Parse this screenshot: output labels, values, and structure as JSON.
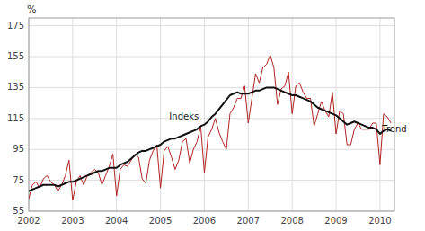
{
  "chart_data": {
    "type": "line",
    "ylabel": "%",
    "ylim": [
      55,
      180
    ],
    "yticks": [
      55,
      75,
      95,
      115,
      135,
      155,
      175
    ],
    "xlim": [
      2002.0,
      2010.33
    ],
    "xticks": [
      2002,
      2003,
      2004,
      2005,
      2006,
      2007,
      2008,
      2009,
      2010
    ],
    "grid": true,
    "x": [
      2002.0,
      2002.0833333333333,
      2002.1666666666667,
      2002.25,
      2002.3333333333333,
      2002.4166666666667,
      2002.5,
      2002.5833333333333,
      2002.6666666666667,
      2002.75,
      2002.8333333333333,
      2002.9166666666667,
      2003.0,
      2003.0833333333333,
      2003.1666666666667,
      2003.25,
      2003.3333333333333,
      2003.4166666666667,
      2003.5,
      2003.5833333333333,
      2003.6666666666667,
      2003.75,
      2003.8333333333333,
      2003.9166666666667,
      2004.0,
      2004.0833333333333,
      2004.1666666666667,
      2004.25,
      2004.3333333333333,
      2004.4166666666667,
      2004.5,
      2004.5833333333333,
      2004.6666666666667,
      2004.75,
      2004.8333333333333,
      2004.9166666666667,
      2005.0,
      2005.0833333333333,
      2005.1666666666667,
      2005.25,
      2005.3333333333333,
      2005.4166666666667,
      2005.5,
      2005.5833333333333,
      2005.6666666666667,
      2005.75,
      2005.8333333333333,
      2005.9166666666667,
      2006.0,
      2006.0833333333333,
      2006.1666666666667,
      2006.25,
      2006.3333333333333,
      2006.4166666666667,
      2006.5,
      2006.5833333333333,
      2006.6666666666667,
      2006.75,
      2006.8333333333333,
      2006.9166666666667,
      2007.0,
      2007.0833333333333,
      2007.1666666666667,
      2007.25,
      2007.3333333333333,
      2007.4166666666667,
      2007.5,
      2007.5833333333333,
      2007.6666666666667,
      2007.75,
      2007.8333333333333,
      2007.9166666666667,
      2008.0,
      2008.0833333333333,
      2008.1666666666667,
      2008.25,
      2008.3333333333333,
      2008.4166666666667,
      2008.5,
      2008.5833333333333,
      2008.6666666666667,
      2008.75,
      2008.8333333333333,
      2008.9166666666667,
      2009.0,
      2009.0833333333333,
      2009.1666666666667,
      2009.25,
      2009.3333333333333,
      2009.4166666666667,
      2009.5,
      2009.5833333333333,
      2009.6666666666667,
      2009.75,
      2009.8333333333333,
      2009.9166666666667,
      2010.0,
      2010.0833333333333,
      2010.1666666666667,
      2010.25
    ],
    "series": [
      {
        "color": "#b22222",
        "values": [
          63,
          72,
          74,
          70,
          76,
          78,
          74,
          72,
          68,
          72,
          78,
          88,
          62,
          74,
          78,
          72,
          78,
          80,
          82,
          80,
          72,
          78,
          84,
          92,
          65,
          82,
          85,
          84,
          88,
          92,
          90,
          76,
          73,
          88,
          94,
          98,
          70,
          94,
          97,
          90,
          82,
          88,
          100,
          102,
          86,
          95,
          100,
          110,
          80,
          103,
          108,
          115,
          106,
          100,
          95,
          118,
          122,
          128,
          128,
          136,
          112,
          128,
          144,
          138,
          148,
          150,
          156,
          148,
          124,
          134,
          136,
          145,
          118,
          136,
          138,
          132,
          128,
          128,
          110,
          118,
          126,
          120,
          116,
          132,
          105,
          120,
          118,
          98,
          98,
          108,
          112,
          108,
          108,
          108,
          112,
          112,
          85,
          118,
          116,
          112
        ]
      },
      {
        "color": "#111111",
        "values": [
          68,
          69,
          70,
          71,
          72,
          72,
          72,
          72,
          71,
          72,
          73,
          74,
          74,
          75,
          76,
          77,
          78,
          79,
          80,
          81,
          81,
          82,
          83,
          83,
          83,
          85,
          86,
          87,
          89,
          91,
          93,
          94,
          94,
          95,
          96,
          97,
          98,
          100,
          101,
          102,
          102,
          103,
          104,
          105,
          106,
          107,
          108,
          110,
          111,
          113,
          116,
          118,
          121,
          124,
          127,
          130,
          131,
          132,
          131,
          131,
          131,
          132,
          133,
          133,
          134,
          135,
          135,
          135,
          134,
          133,
          132,
          131,
          130,
          130,
          129,
          128,
          127,
          126,
          124,
          122,
          121,
          120,
          119,
          118,
          117,
          115,
          113,
          111,
          112,
          113,
          112,
          111,
          110,
          109,
          109,
          108,
          105,
          107,
          108,
          107
        ]
      }
    ],
    "annotations": [
      {
        "text": "Indeks",
        "x": 2005.2,
        "y": 116
      },
      {
        "text": "Trend",
        "x": 2010.05,
        "y": 108
      }
    ]
  }
}
